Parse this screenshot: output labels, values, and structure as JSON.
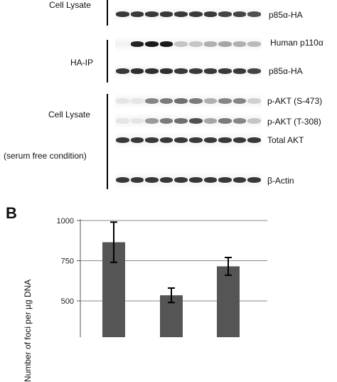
{
  "panel_a": {
    "group_labels": {
      "lysate_top": "Cell Lysate",
      "ha_ip": "HA-IP",
      "lysate_bottom": "Cell Lysate",
      "serum_condition": "(serum free condition)"
    },
    "blot_labels": {
      "p85_lysate": "p85α-HA",
      "p110": "Human p110α",
      "p85_ip": "p85α-HA",
      "pakt_s473": "p-AKT (S-473)",
      "pakt_t308": "p-AKT (T-308)",
      "total_akt": "Total AKT",
      "actin": "β-Actin"
    },
    "band_intensity": {
      "p85_lysate": [
        0.85,
        0.85,
        0.85,
        0.85,
        0.85,
        0.85,
        0.85,
        0.8,
        0.8,
        0.75
      ],
      "p110": [
        0,
        0.95,
        1.0,
        1.0,
        0.2,
        0.2,
        0.3,
        0.35,
        0.3,
        0.25
      ],
      "p85_ip": [
        0.85,
        0.9,
        0.9,
        0.9,
        0.85,
        0.85,
        0.85,
        0.85,
        0.85,
        0.8
      ],
      "pakt_s473": [
        0.05,
        0.05,
        0.5,
        0.55,
        0.6,
        0.55,
        0.3,
        0.5,
        0.5,
        0.15
      ],
      "pakt_t308": [
        0.05,
        0.05,
        0.4,
        0.55,
        0.6,
        0.75,
        0.35,
        0.55,
        0.5,
        0.2
      ],
      "total_akt": [
        0.85,
        0.85,
        0.85,
        0.85,
        0.85,
        0.85,
        0.85,
        0.85,
        0.85,
        0.85
      ],
      "actin": [
        0.85,
        0.85,
        0.85,
        0.85,
        0.85,
        0.85,
        0.85,
        0.85,
        0.85,
        0.85
      ]
    }
  },
  "panel_b": {
    "letter": "B",
    "ylabel": "Number of foci per µg DNA"
  },
  "chart_data": {
    "type": "bar",
    "ylim": [
      250,
      1000
    ],
    "yticks": [
      1000,
      750,
      500
    ],
    "ytick_labels": [
      "1000",
      "750",
      "500"
    ],
    "grid": true,
    "values": [
      865,
      535,
      715
    ],
    "errors": [
      125,
      45,
      55
    ],
    "bar_color": "#555555"
  }
}
